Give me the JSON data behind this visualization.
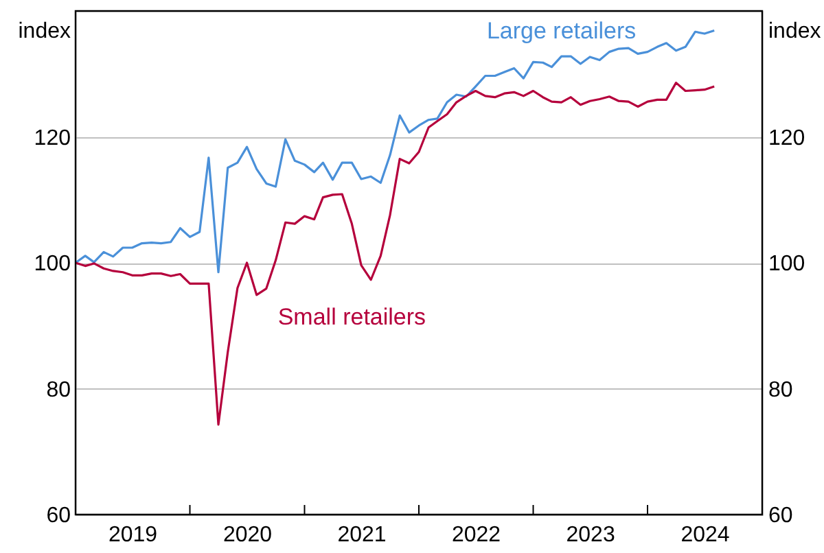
{
  "chart_data": {
    "type": "line",
    "ylabel": "index",
    "y2label": "index",
    "x": [
      "2019-01",
      "2019-02",
      "2019-03",
      "2019-04",
      "2019-05",
      "2019-06",
      "2019-07",
      "2019-08",
      "2019-09",
      "2019-10",
      "2019-11",
      "2019-12",
      "2020-01",
      "2020-02",
      "2020-03",
      "2020-04",
      "2020-05",
      "2020-06",
      "2020-07",
      "2020-08",
      "2020-09",
      "2020-10",
      "2020-11",
      "2020-12",
      "2021-01",
      "2021-02",
      "2021-03",
      "2021-04",
      "2021-05",
      "2021-06",
      "2021-07",
      "2021-08",
      "2021-09",
      "2021-10",
      "2021-11",
      "2021-12",
      "2022-01",
      "2022-02",
      "2022-03",
      "2022-04",
      "2022-05",
      "2022-06",
      "2022-07",
      "2022-08",
      "2022-09",
      "2022-10",
      "2022-11",
      "2022-12",
      "2023-01",
      "2023-02",
      "2023-03",
      "2023-04",
      "2023-05",
      "2023-06",
      "2023-07",
      "2023-08",
      "2023-09",
      "2023-10",
      "2023-11",
      "2023-12",
      "2024-01",
      "2024-02",
      "2024-03",
      "2024-04",
      "2024-05",
      "2024-06",
      "2024-07",
      "2024-08"
    ],
    "series": [
      {
        "name": "Large retailers",
        "color": "#4a90d9",
        "values": [
          100,
          101.1,
          100.1,
          101.7,
          101,
          102.4,
          102.4,
          103.1,
          103.2,
          103.1,
          103.3,
          105.5,
          104.1,
          104.9,
          116.7,
          98.5,
          115.1,
          115.9,
          118.4,
          114.9,
          112.6,
          112.1,
          119.6,
          116.2,
          115.6,
          114.4,
          115.9,
          113.2,
          115.9,
          115.9,
          113.3,
          113.7,
          112.7,
          117.1,
          123.4,
          120.7,
          121.8,
          122.7,
          122.9,
          125.5,
          126.7,
          126.4,
          128,
          129.7,
          129.7,
          130.3,
          130.9,
          129.3,
          131.9,
          131.8,
          131.1,
          132.8,
          132.8,
          131.6,
          132.7,
          132.2,
          133.5,
          134,
          134.1,
          133.2,
          133.5,
          134.3,
          134.9,
          133.7,
          134.3,
          136.7,
          136.4,
          136.9
        ]
      },
      {
        "name": "Small retailers",
        "color": "#b5003c",
        "values": [
          100,
          99.5,
          99.9,
          99.1,
          98.7,
          98.5,
          98,
          98,
          98.3,
          98.3,
          97.9,
          98.2,
          96.7,
          96.7,
          96.7,
          74.3,
          85.8,
          96,
          100,
          94.9,
          95.9,
          100.4,
          106.4,
          106.2,
          107.4,
          106.9,
          110.4,
          110.8,
          110.9,
          106.2,
          99.6,
          97.3,
          101.1,
          107.6,
          116.5,
          115.8,
          117.6,
          121.5,
          122.5,
          123.6,
          125.5,
          126.5,
          127.3,
          126.5,
          126.3,
          126.9,
          127.1,
          126.5,
          127.3,
          126.3,
          125.6,
          125.5,
          126.3,
          125.1,
          125.7,
          126,
          126.4,
          125.7,
          125.6,
          124.8,
          125.6,
          125.9,
          125.9,
          128.6,
          127.3,
          127.4,
          127.5,
          128
        ]
      }
    ],
    "xlim": [
      "2019",
      "2025"
    ],
    "xticks": [
      {
        "value": "2019",
        "label": null
      },
      {
        "value": "2020",
        "label": null
      },
      {
        "value": "2021",
        "label": null
      },
      {
        "value": "2022",
        "label": null
      },
      {
        "value": "2023",
        "label": null
      },
      {
        "value": "2024",
        "label": null
      },
      {
        "value": "2025",
        "label": null
      },
      {
        "value": "2019-07",
        "label": "2019"
      },
      {
        "value": "2020-07",
        "label": "2020"
      },
      {
        "value": "2021-07",
        "label": "2021"
      },
      {
        "value": "2022-07",
        "label": "2022"
      },
      {
        "value": "2023-07",
        "label": "2023"
      },
      {
        "value": "2024-07",
        "label": "2024"
      }
    ],
    "ylim": [
      60,
      140
    ],
    "yticks": [
      60,
      80,
      100,
      120
    ],
    "y2lim": [
      60,
      140
    ],
    "y2ticks": [
      60,
      80,
      100,
      120
    ],
    "grid": "y",
    "marker": "none",
    "line_style": "solid"
  }
}
